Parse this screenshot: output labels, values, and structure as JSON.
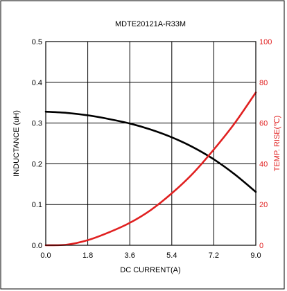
{
  "chart_data": {
    "type": "line",
    "title": "MDTE20121A-R33M",
    "xlabel": "DC CURRENT(A)",
    "ylabel_left": "INDUCTANCE (uH)",
    "ylabel_right": "TEMP. RISE(℃)",
    "xlim": [
      0,
      9.0
    ],
    "ylim_left": [
      0,
      0.5
    ],
    "ylim_right": [
      0,
      100
    ],
    "x_ticks": [
      "0.0",
      "1.8",
      "3.6",
      "5.4",
      "7.2",
      "9.0"
    ],
    "y_left_ticks": [
      "0.0",
      "0.1",
      "0.2",
      "0.3",
      "0.4",
      "0.5"
    ],
    "y_right_ticks": [
      "0",
      "20",
      "40",
      "60",
      "80",
      "100"
    ],
    "grid": true,
    "colors": {
      "inductance": "#000000",
      "temp_rise": "#e02020",
      "grid": "#000000",
      "frame": "#000000"
    },
    "series": [
      {
        "axis": "left",
        "color": "#000000",
        "x": [
          0,
          0.9,
          1.8,
          2.7,
          3.6,
          4.5,
          5.4,
          6.3,
          7.2,
          8.1,
          9.0
        ],
        "y": [
          0.328,
          0.325,
          0.319,
          0.31,
          0.299,
          0.284,
          0.265,
          0.241,
          0.211,
          0.174,
          0.131
        ]
      },
      {
        "axis": "right",
        "color": "#e02020",
        "x": [
          0,
          0.9,
          1.8,
          2.7,
          3.6,
          4.5,
          5.4,
          6.3,
          7.2,
          8.1,
          9.0
        ],
        "y": [
          0,
          0.3,
          2.5,
          6.3,
          11,
          17.3,
          25.5,
          35.2,
          47,
          60,
          75
        ]
      }
    ]
  }
}
